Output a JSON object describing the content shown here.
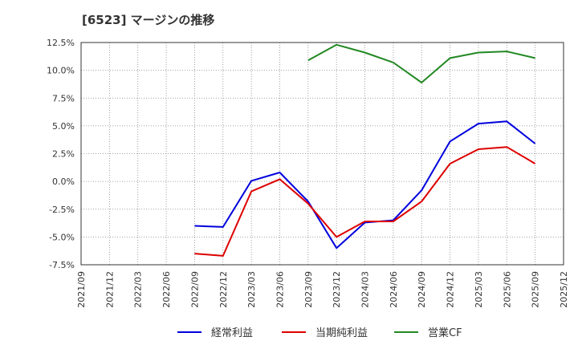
{
  "chart_data": {
    "type": "line",
    "title": "[6523]  マージンの推移",
    "xlabel": "",
    "ylabel": "",
    "ylim": [
      -7.5,
      12.5
    ],
    "yticks": [
      "12.5%",
      "10.0%",
      "7.5%",
      "5.0%",
      "2.5%",
      "0.0%",
      "-2.5%",
      "-5.0%",
      "-7.5%"
    ],
    "ytick_values": [
      12.5,
      10.0,
      7.5,
      5.0,
      2.5,
      0.0,
      -2.5,
      -5.0,
      -7.5
    ],
    "categories": [
      "2021/09",
      "2021/12",
      "2022/03",
      "2022/06",
      "2022/09",
      "2022/12",
      "2023/03",
      "2023/06",
      "2023/09",
      "2023/12",
      "2024/03",
      "2024/06",
      "2024/09",
      "2024/12",
      "2025/03",
      "2025/06",
      "2025/09",
      "2025/12"
    ],
    "grid": true,
    "legend_position": "bottom",
    "series": [
      {
        "name": "経常利益",
        "color": "#0000dd",
        "values": [
          null,
          null,
          null,
          null,
          -4.0,
          -4.1,
          0.05,
          0.8,
          -1.8,
          -6.0,
          -3.7,
          -3.5,
          -0.8,
          3.6,
          5.2,
          5.4,
          3.4,
          null
        ]
      },
      {
        "name": "当期純利益",
        "color": "#dd0000",
        "values": [
          null,
          null,
          null,
          null,
          -6.5,
          -6.7,
          -0.9,
          0.2,
          -2.0,
          -5.0,
          -3.6,
          -3.6,
          -1.8,
          1.6,
          2.9,
          3.1,
          1.6,
          null
        ]
      },
      {
        "name": "営業CF",
        "color": "#228822",
        "values": [
          null,
          null,
          null,
          null,
          null,
          null,
          null,
          null,
          10.9,
          12.3,
          11.6,
          10.7,
          8.9,
          11.1,
          11.6,
          11.7,
          11.1,
          null
        ]
      }
    ]
  }
}
